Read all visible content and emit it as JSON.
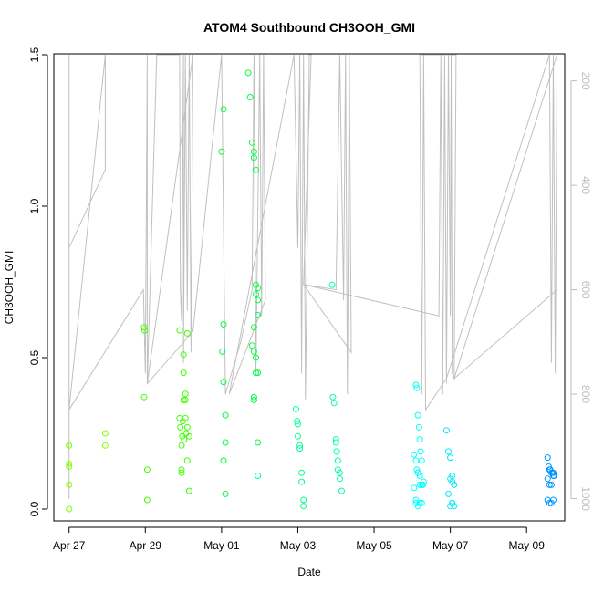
{
  "chart_data": {
    "type": "scatter",
    "title": "ATOM4 Southbound CH3OOH_GMI",
    "xlabel": "Date",
    "ylabel": "CH3OOH_GMI",
    "x_ticks": [
      "Apr 27",
      "Apr 29",
      "May 01",
      "May 03",
      "May 05",
      "May 07",
      "May 09"
    ],
    "x_tick_days": [
      0,
      2,
      4,
      6,
      8,
      10,
      12
    ],
    "xlim_days": [
      -0.4,
      13.0
    ],
    "ylim": [
      0,
      1.5
    ],
    "y_ticks": [
      "0.0",
      "0.5",
      "1.0",
      "1.5"
    ],
    "y_tick_values": [
      0,
      0.5,
      1.0,
      1.5
    ],
    "y2_ticks": [
      "200",
      "400",
      "600",
      "800",
      "1000"
    ],
    "y2_tick_values": [
      200,
      400,
      600,
      800,
      1000
    ],
    "y2lim": [
      1020,
      150
    ],
    "grid": false,
    "legend": "none",
    "colors": {
      "profile_line": "#c0c0c0",
      "c1": "#80ff00",
      "c2": "#40ff00",
      "c3": "#00ff40",
      "c4": "#00ffa0",
      "c5": "#00ffff",
      "c6": "#00c8ff",
      "c7": "#0096ff"
    },
    "flight_profile_day_pressure": [
      [
        0.0,
        1000
      ],
      [
        0.0,
        150
      ],
      [
        0.0,
        520
      ],
      [
        0.95,
        370
      ],
      [
        0.95,
        150
      ],
      [
        0.95,
        150
      ],
      [
        0.0,
        830
      ],
      [
        1.95,
        600
      ],
      [
        2.0,
        760
      ],
      [
        2.05,
        150
      ],
      [
        2.05,
        780
      ],
      [
        2.3,
        150
      ],
      [
        2.9,
        150
      ],
      [
        2.92,
        600
      ],
      [
        2.95,
        660
      ],
      [
        3.0,
        150
      ],
      [
        3.0,
        740
      ],
      [
        3.05,
        150
      ],
      [
        3.1,
        640
      ],
      [
        3.15,
        150
      ],
      [
        3.2,
        720
      ],
      [
        3.25,
        150
      ],
      [
        2.05,
        780
      ],
      [
        3.25,
        680
      ],
      [
        4.0,
        150
      ],
      [
        4.1,
        800
      ],
      [
        4.5,
        700
      ],
      [
        4.8,
        600
      ],
      [
        4.85,
        150
      ],
      [
        4.9,
        760
      ],
      [
        5.0,
        150
      ],
      [
        5.05,
        650
      ],
      [
        5.1,
        150
      ],
      [
        5.15,
        620
      ],
      [
        4.2,
        800
      ],
      [
        5.9,
        150
      ],
      [
        6.0,
        520
      ],
      [
        6.05,
        150
      ],
      [
        6.1,
        760
      ],
      [
        6.15,
        150
      ],
      [
        6.2,
        810
      ],
      [
        6.3,
        150
      ],
      [
        6.35,
        150
      ],
      [
        6.15,
        590
      ],
      [
        7.0,
        600
      ],
      [
        7.1,
        150
      ],
      [
        7.2,
        620
      ],
      [
        7.25,
        150
      ],
      [
        7.3,
        800
      ],
      [
        7.35,
        150
      ],
      [
        7.4,
        720
      ],
      [
        6.15,
        590
      ],
      [
        9.7,
        650
      ],
      [
        9.75,
        150
      ],
      [
        9.8,
        800
      ],
      [
        9.85,
        150
      ],
      [
        9.9,
        780
      ],
      [
        9.95,
        150
      ],
      [
        10.0,
        650
      ],
      [
        10.02,
        150
      ],
      [
        10.05,
        760
      ],
      [
        10.1,
        770
      ],
      [
        10.15,
        150
      ],
      [
        9.2,
        150
      ],
      [
        9.25,
        800
      ],
      [
        9.3,
        150
      ],
      [
        9.35,
        830
      ],
      [
        9.9,
        770
      ],
      [
        12.6,
        150
      ],
      [
        12.65,
        740
      ],
      [
        12.7,
        150
      ],
      [
        12.75,
        760
      ],
      [
        12.8,
        150
      ],
      [
        10.1,
        770
      ],
      [
        12.8,
        600
      ]
    ],
    "series": [
      {
        "color": "#80ff00",
        "x": [
          0.0,
          0.0,
          0.0,
          0.0,
          0.0,
          0.0,
          0.95,
          0.95
        ],
        "y": [
          0.21,
          0.21,
          0.15,
          0.14,
          0.08,
          0.0,
          0.25,
          0.21
        ]
      },
      {
        "color": "#40ff00",
        "x": [
          1.97,
          1.98,
          1.97,
          2.05,
          2.05,
          2.9,
          2.9,
          2.92,
          2.95,
          2.95,
          2.95,
          2.97,
          2.98,
          3.0,
          3.0,
          3.0,
          3.02,
          3.05,
          3.05,
          3.05,
          3.07,
          3.1,
          3.1,
          3.1,
          3.15,
          3.15
        ],
        "y": [
          0.6,
          0.59,
          0.37,
          0.13,
          0.03,
          0.59,
          0.3,
          0.27,
          0.21,
          0.13,
          0.12,
          0.24,
          0.29,
          0.51,
          0.45,
          0.36,
          0.23,
          0.38,
          0.36,
          0.3,
          0.25,
          0.58,
          0.27,
          0.16,
          0.24,
          0.06
        ]
      },
      {
        "color": "#00ff40",
        "x": [
          4.0,
          4.05,
          4.02,
          4.05,
          4.1,
          4.1,
          4.05,
          4.1,
          4.05,
          4.7,
          4.75,
          4.8,
          4.85,
          4.85,
          4.9,
          4.9,
          4.95,
          4.9,
          4.95,
          4.95,
          4.85,
          4.8,
          4.85,
          4.9,
          4.9,
          4.95,
          4.85,
          4.85,
          4.95
        ],
        "y": [
          1.18,
          1.32,
          0.52,
          0.42,
          0.31,
          0.22,
          0.16,
          0.05,
          0.61,
          1.44,
          1.36,
          1.21,
          1.18,
          1.16,
          1.12,
          0.74,
          0.73,
          0.71,
          0.69,
          0.64,
          0.6,
          0.54,
          0.52,
          0.5,
          0.45,
          0.45,
          0.37,
          0.36,
          0.22
        ]
      },
      {
        "color": "#00ff90",
        "x": [
          4.95,
          5.95,
          5.98,
          6.0,
          6.0,
          6.05,
          6.05,
          6.1,
          6.1,
          6.15,
          6.15
        ],
        "y": [
          0.11,
          0.33,
          0.29,
          0.28,
          0.24,
          0.21,
          0.2,
          0.12,
          0.09,
          0.03,
          0.01
        ]
      },
      {
        "color": "#00ffa0",
        "x": [
          6.9,
          6.92,
          6.95,
          7.0,
          7.0,
          7.02,
          7.05,
          7.05,
          7.1,
          7.1,
          7.15
        ],
        "y": [
          0.74,
          0.37,
          0.35,
          0.23,
          0.22,
          0.19,
          0.16,
          0.13,
          0.12,
          0.1,
          0.06
        ]
      },
      {
        "color": "#00ffff",
        "x": [
          9.1,
          9.12,
          9.15,
          9.18,
          9.2,
          9.22,
          9.25,
          9.05,
          9.1,
          9.12,
          9.15,
          9.2,
          9.25,
          9.05,
          9.1,
          9.15,
          9.2,
          9.25,
          9.28,
          9.3,
          9.1,
          9.15,
          9.2
        ],
        "y": [
          0.41,
          0.4,
          0.31,
          0.27,
          0.23,
          0.19,
          0.16,
          0.18,
          0.16,
          0.13,
          0.12,
          0.08,
          0.08,
          0.07,
          0.02,
          0.01,
          0.02,
          0.02,
          0.08,
          0.09,
          0.03,
          0.12,
          0.11
        ]
      },
      {
        "color": "#00e8ff",
        "x": [
          9.9,
          9.95,
          10.0,
          10.05,
          10.0,
          10.05,
          10.1,
          9.95,
          10.05,
          10.1,
          10.0,
          10.05
        ],
        "y": [
          0.26,
          0.19,
          0.17,
          0.11,
          0.1,
          0.09,
          0.08,
          0.05,
          0.02,
          0.01,
          0.01,
          0.02
        ]
      },
      {
        "color": "#0096ff",
        "x": [
          12.55,
          12.58,
          12.6,
          12.62,
          12.65,
          12.68,
          12.7,
          12.55,
          12.6,
          12.65,
          12.7,
          12.72,
          12.55,
          12.6,
          12.65,
          12.7
        ],
        "y": [
          0.17,
          0.14,
          0.13,
          0.13,
          0.12,
          0.12,
          0.11,
          0.1,
          0.08,
          0.08,
          0.12,
          0.11,
          0.03,
          0.02,
          0.02,
          0.03
        ]
      }
    ]
  }
}
